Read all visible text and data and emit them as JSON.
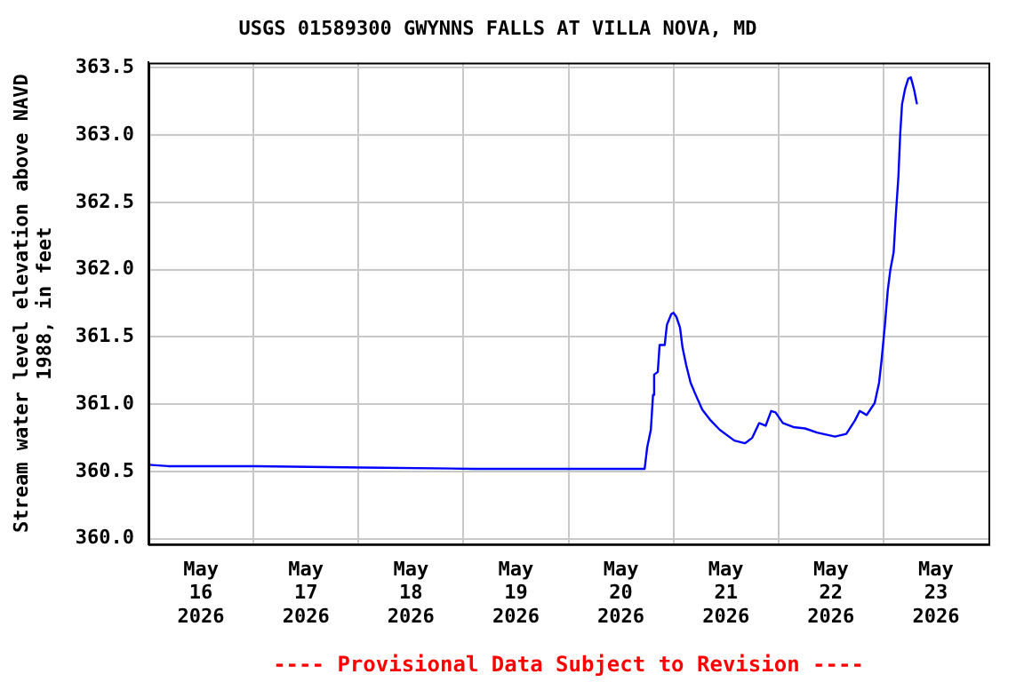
{
  "chart_data": {
    "type": "line",
    "title": "USGS 01589300 GWYNNS FALLS AT VILLA NOVA, MD",
    "ylabel": "Stream water level elevation above NAVD 1988, in feet",
    "annotations": [
      "---- Provisional Data Subject to Revision ----"
    ],
    "x": [
      "2026-05-15T12:00",
      "2026-05-15T16:30",
      "2026-05-16T12:40",
      "2026-05-17T13:00",
      "2026-05-18T14:30",
      "2026-05-20T05:25",
      "2026-05-20T06:00",
      "2026-05-20T06:50",
      "2026-05-20T07:20",
      "2026-05-20T07:35",
      "2026-05-20T08:25",
      "2026-05-20T08:50",
      "2026-05-20T10:00",
      "2026-05-20T10:30",
      "2026-05-20T11:30",
      "2026-05-20T12:00",
      "2026-05-20T12:40",
      "2026-05-20T13:30",
      "2026-05-20T14:05",
      "2026-05-20T14:55",
      "2026-05-20T15:55",
      "2026-05-20T17:05",
      "2026-05-20T18:35",
      "2026-05-20T20:30",
      "2026-05-20T22:35",
      "2026-05-21T01:55",
      "2026-05-21T04:20",
      "2026-05-21T06:00",
      "2026-05-21T07:35",
      "2026-05-21T09:05",
      "2026-05-21T10:20",
      "2026-05-21T11:20",
      "2026-05-21T13:00",
      "2026-05-21T15:25",
      "2026-05-21T18:05",
      "2026-05-21T20:50",
      "2026-05-22T00:55",
      "2026-05-22T03:30",
      "2026-05-22T05:30",
      "2026-05-22T06:35",
      "2026-05-22T08:10",
      "2026-05-22T10:00",
      "2026-05-22T11:00",
      "2026-05-22T11:35",
      "2026-05-22T12:20",
      "2026-05-22T13:00",
      "2026-05-22T13:35",
      "2026-05-22T14:20",
      "2026-05-22T14:50",
      "2026-05-22T15:25",
      "2026-05-22T15:50",
      "2026-05-22T16:15",
      "2026-05-22T16:55",
      "2026-05-22T17:40",
      "2026-05-22T18:15",
      "2026-05-22T18:40",
      "2026-05-22T19:00",
      "2026-05-22T19:40"
    ],
    "series": [
      {
        "color": "#0000ff",
        "values": [
          360.55,
          360.54,
          360.54,
          360.53,
          360.52,
          360.52,
          360.68,
          360.81,
          361.07,
          361.22,
          361.24,
          361.44,
          361.44,
          361.59,
          361.67,
          361.68,
          361.65,
          361.57,
          361.42,
          361.29,
          361.16,
          361.07,
          360.96,
          360.88,
          360.81,
          360.73,
          360.71,
          360.75,
          360.86,
          360.84,
          360.95,
          360.94,
          360.86,
          360.83,
          360.82,
          360.79,
          360.76,
          360.78,
          360.88,
          360.95,
          360.92,
          361.01,
          361.16,
          361.33,
          361.59,
          361.85,
          362.0,
          362.13,
          362.41,
          362.69,
          363.01,
          363.23,
          363.34,
          363.42,
          363.43,
          363.38,
          363.34,
          363.23
        ]
      }
    ],
    "xlim": [
      "2026-05-15T12:00",
      "2026-05-23T12:00"
    ],
    "xticks": [
      {
        "value": "2026-05-16",
        "label": "May 16 2026"
      },
      {
        "value": "2026-05-16T12:00",
        "label": null
      },
      {
        "value": "2026-05-17",
        "label": "May 17 2026"
      },
      {
        "value": "2026-05-17T12:00",
        "label": null
      },
      {
        "value": "2026-05-18",
        "label": "May 18 2026"
      },
      {
        "value": "2026-05-18T12:00",
        "label": null
      },
      {
        "value": "2026-05-19",
        "label": "May 19 2026"
      },
      {
        "value": "2026-05-19T12:00",
        "label": null
      },
      {
        "value": "2026-05-20",
        "label": "May 20 2026"
      },
      {
        "value": "2026-05-20T12:00",
        "label": null
      },
      {
        "value": "2026-05-21",
        "label": "May 21 2026"
      },
      {
        "value": "2026-05-21T12:00",
        "label": null
      },
      {
        "value": "2026-05-22",
        "label": "May 22 2026"
      },
      {
        "value": "2026-05-22T12:00",
        "label": null
      },
      {
        "value": "2026-05-23",
        "label": "May 23 2026"
      }
    ],
    "ylim": [
      359.96,
      363.54
    ],
    "yticks": [
      {
        "value": 360,
        "label": "360.0"
      },
      {
        "value": 360.5,
        "label": "360.5"
      },
      {
        "value": 361,
        "label": "361.0"
      },
      {
        "value": 361.5,
        "label": "361.5"
      },
      {
        "value": 362,
        "label": "362.0"
      },
      {
        "value": 362.5,
        "label": "362.5"
      },
      {
        "value": 363,
        "label": "363.0"
      },
      {
        "value": 363.5,
        "label": "363.5"
      }
    ],
    "grid": true,
    "marker": "none",
    "line_style": "solid",
    "legend": false
  }
}
